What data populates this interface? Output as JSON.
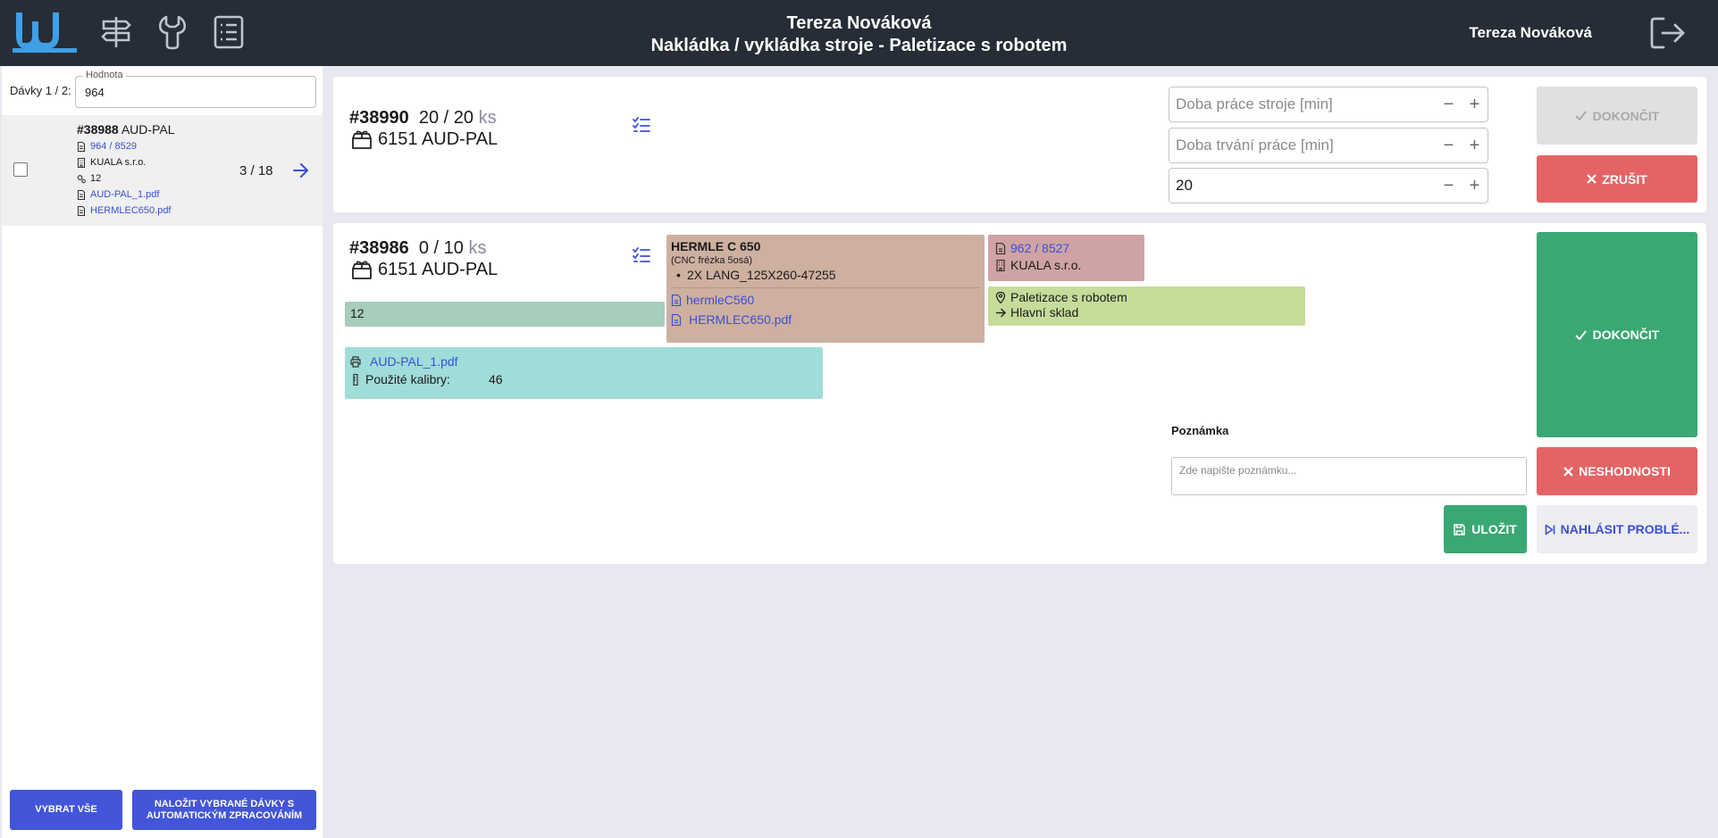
{
  "header": {
    "title_user": "Tereza Nováková",
    "title_task": "Nakládka / vykládka stroje - Paletizace s robotem",
    "user_name": "Tereza Nováková"
  },
  "sidebar": {
    "batches_label": "Dávky",
    "batches_count": "1 / 2:",
    "field_label": "Hodnota",
    "field_value": "964",
    "batch": {
      "order_no": "#38988",
      "product": "AUD-PAL",
      "doc_ref": "964 / 8529",
      "company": "KUALA s.r.o.",
      "qty": "12",
      "file1": "AUD-PAL_1.pdf",
      "file2": "HERMLEC650.pdf",
      "progress": "3 / 18"
    },
    "select_all": "VYBRAT VŠE",
    "load_selected": "NALOŽIT VYBRANÉ DÁVKY S AUTOMATICKÝM ZPRACOVÁNÍM"
  },
  "card1": {
    "order_no": "#38990",
    "count": "20 / 20",
    "unit": "ks",
    "product": "6151 AUD-PAL",
    "machine_time_placeholder": "Doba práce stroje [min]",
    "work_time_placeholder": "Doba trvání práce [min]",
    "third_value": "20",
    "minus": "−",
    "plus": "+",
    "finish": "DOKONČIT",
    "cancel": "ZRUŠIT"
  },
  "card2": {
    "order_no": "#38986",
    "count": "0 / 10",
    "unit": "ks",
    "product": "6151 AUD-PAL",
    "qty_chip": "12",
    "machine": {
      "name": "HERMLE C 650",
      "type": "(CNC frézka 5osá)",
      "tool": "2X LANG_125X260-47255",
      "link1": "hermleC560",
      "link2": "HERMLEC650.pdf"
    },
    "doc": {
      "ref": "962 / 8527",
      "company": "KUALA s.r.o."
    },
    "location": {
      "process": "Paletizace s robotem",
      "warehouse": "Hlavní sklad"
    },
    "print": {
      "file": "AUD-PAL_1.pdf",
      "calibers_label": "Použité kalibry:",
      "calibers_value": "46"
    },
    "note_label": "Poznámka",
    "note_placeholder": "Zde napište poznámku...",
    "finish": "DOKONČIT",
    "nonconformity": "NESHODNOSTI",
    "save": "ULOŽIT",
    "report": "NAHLÁSIT PROBLÉ..."
  },
  "colors": {
    "header_bg": "#272d36",
    "accent_blue": "#4355d8",
    "logo_blue": "#3f9fe6",
    "green": "#3aa873",
    "red": "#e46465",
    "chip_teal": "#a7cdbd",
    "chip_brown": "#ceb0a0",
    "chip_rose": "#cfa3a3",
    "chip_lime": "#c6dc9a",
    "chip_cyan": "#a0dcd8"
  }
}
